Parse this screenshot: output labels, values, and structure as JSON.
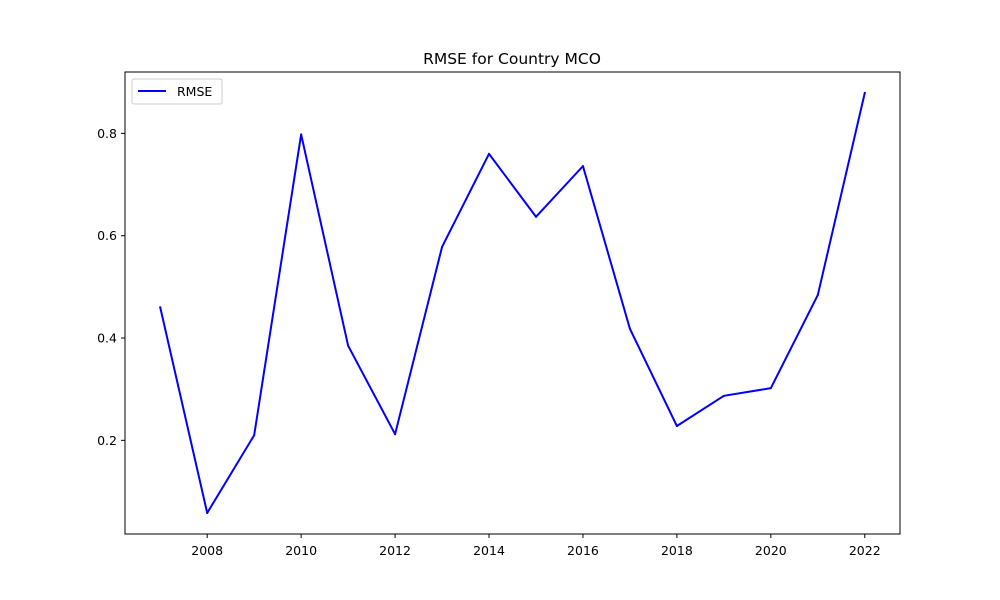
{
  "chart_data": {
    "type": "line",
    "title": "RMSE for Country MCO",
    "xlabel": "",
    "ylabel": "",
    "x": [
      2007,
      2008,
      2009,
      2010,
      2011,
      2012,
      2013,
      2014,
      2015,
      2016,
      2017,
      2018,
      2019,
      2020,
      2021,
      2022
    ],
    "series": [
      {
        "name": "RMSE",
        "color": "#0000ff",
        "values": [
          0.46,
          0.058,
          0.21,
          0.798,
          0.385,
          0.212,
          0.578,
          0.76,
          0.637,
          0.736,
          0.418,
          0.228,
          0.287,
          0.302,
          0.484,
          0.879
        ]
      }
    ],
    "xticks": [
      2008,
      2010,
      2012,
      2014,
      2016,
      2018,
      2020,
      2022
    ],
    "xtick_labels": [
      "2008",
      "2010",
      "2012",
      "2014",
      "2016",
      "2018",
      "2020",
      "2022"
    ],
    "yticks": [
      0.2,
      0.4,
      0.6,
      0.8
    ],
    "ytick_labels": [
      "0.2",
      "0.4",
      "0.6",
      "0.8"
    ],
    "xlim": [
      2006.25,
      2022.75
    ],
    "ylim": [
      0.0169,
      0.92
    ],
    "grid": false,
    "legend_position": "top-left"
  }
}
